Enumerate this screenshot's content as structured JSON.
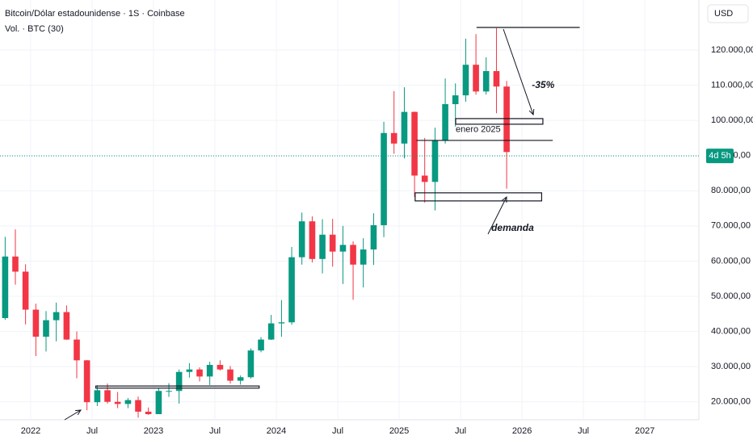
{
  "chart_data": {
    "type": "candlestick",
    "title": "Bitcoin/Dólar estadounidense · 1S · Coinbase",
    "subtitle": "Vol. · BTC (30)",
    "currency": "USD",
    "countdown": "4d 5h",
    "price_line": 89900,
    "up_color": "#089981",
    "down_color": "#f23645",
    "x": [
      2021.792,
      2021.875,
      2021.958,
      2022.042,
      2022.125,
      2022.208,
      2022.292,
      2022.375,
      2022.458,
      2022.542,
      2022.625,
      2022.708,
      2022.792,
      2022.875,
      2022.958,
      2023.042,
      2023.125,
      2023.208,
      2023.292,
      2023.375,
      2023.458,
      2023.542,
      2023.625,
      2023.708,
      2023.792,
      2023.875,
      2023.958,
      2024.042,
      2024.125,
      2024.208,
      2024.292,
      2024.375,
      2024.458,
      2024.542,
      2024.625,
      2024.708,
      2024.792,
      2024.875,
      2024.958,
      2025.042,
      2025.125,
      2025.208,
      2025.292,
      2025.375,
      2025.458,
      2025.542,
      2025.625,
      2025.708,
      2025.792,
      2025.875
    ],
    "open": [
      43800,
      61300,
      57000,
      46200,
      38500,
      43200,
      45500,
      37700,
      31800,
      19900,
      23300,
      20000,
      19400,
      20500,
      17200,
      16500,
      23100,
      23100,
      28500,
      29200,
      27200,
      30500,
      29200,
      26000,
      27000,
      34600,
      37700,
      42300,
      42600,
      61100,
      71300,
      60600,
      67500,
      62700,
      64600,
      59000,
      63300,
      70200,
      96400,
      93400,
      102400,
      84300,
      82500,
      94200,
      104600,
      107100,
      115800,
      108200,
      114000,
      109600
    ],
    "high": [
      66900,
      69000,
      59100,
      47900,
      45800,
      48200,
      47400,
      40000,
      31900,
      24700,
      25200,
      22800,
      21100,
      21500,
      18400,
      23900,
      25300,
      29200,
      31000,
      29800,
      31400,
      31800,
      30200,
      27500,
      35200,
      38400,
      44700,
      48900,
      64000,
      73800,
      72700,
      71900,
      72000,
      70000,
      65600,
      66500,
      73600,
      99600,
      108300,
      109400,
      102500,
      95000,
      97900,
      111900,
      110500,
      123200,
      124500,
      117900,
      126200,
      111200
    ],
    "low": [
      43300,
      53300,
      42000,
      33000,
      34300,
      37200,
      37600,
      26700,
      17600,
      18800,
      19500,
      18200,
      18200,
      15500,
      16300,
      16500,
      21400,
      19500,
      26900,
      25800,
      24800,
      28900,
      25200,
      24900,
      26600,
      34100,
      37600,
      38500,
      41900,
      59000,
      59600,
      56500,
      58400,
      53500,
      49000,
      52500,
      58900,
      66800,
      90500,
      89200,
      78200,
      76600,
      74400,
      93400,
      98200,
      105300,
      107300,
      107300,
      102000,
      80600
    ],
    "close": [
      61300,
      57000,
      46200,
      38500,
      43200,
      45500,
      37700,
      31800,
      19900,
      23300,
      20000,
      19400,
      20500,
      17200,
      16500,
      23100,
      23100,
      28500,
      29200,
      27200,
      30500,
      29200,
      26000,
      27000,
      34600,
      37700,
      42300,
      42600,
      61100,
      71300,
      60600,
      67500,
      62700,
      64600,
      59000,
      63300,
      70200,
      96400,
      93400,
      102400,
      84300,
      82500,
      94200,
      104600,
      107100,
      115800,
      108200,
      114000,
      109600,
      91000
    ],
    "xlim": [
      2021.75,
      2027.44
    ],
    "ylim": [
      14900,
      134200
    ],
    "xticks": [
      2022,
      {
        "value": 2022.5,
        "label": "Jul"
      },
      2023,
      {
        "value": 2023.5,
        "label": "Jul"
      },
      2024,
      {
        "value": 2024.5,
        "label": "Jul"
      },
      2025,
      {
        "value": 2025.5,
        "label": "Jul"
      },
      2026,
      {
        "value": 2026.5,
        "label": "Jul"
      },
      2027
    ],
    "yticks": [
      {
        "value": 20000,
        "label": "20.000,00"
      },
      {
        "value": 30000,
        "label": "30.000,00"
      },
      {
        "value": 40000,
        "label": "40.000,00"
      },
      {
        "value": 50000,
        "label": "50.000,00"
      },
      {
        "value": 60000,
        "label": "60.000,00"
      },
      {
        "value": 70000,
        "label": "70.000,00"
      },
      {
        "value": 80000,
        "label": "80.000,00"
      },
      {
        "value": 90000,
        "label": "90.000,00"
      },
      {
        "value": 100000,
        "label": "100.000,00"
      },
      {
        "value": 110000,
        "label": "110.000,00"
      },
      {
        "value": 120000,
        "label": "120.000,00"
      }
    ],
    "zones": [
      {
        "from": 2025.63,
        "to": 2026.47,
        "low": 126400,
        "high": 126400
      },
      {
        "from": 2025.14,
        "to": 2026.25,
        "low": 94300,
        "high": 94300
      },
      {
        "from": 2025.46,
        "to": 2026.17,
        "low": 98900,
        "high": 100500
      },
      {
        "from": 2025.13,
        "to": 2026.16,
        "low": 77100,
        "high": 79400
      },
      {
        "from": 2022.53,
        "to": 2023.86,
        "low": 23900,
        "high": 24500
      }
    ],
    "annotations": [
      {
        "text": "-35%",
        "x": 2026.08,
        "y": 109900
      },
      {
        "text": "enero 2025",
        "x": 2025.46,
        "y": 97300
      },
      {
        "text": "demanda",
        "x": 2025.75,
        "y": 69300
      }
    ]
  }
}
